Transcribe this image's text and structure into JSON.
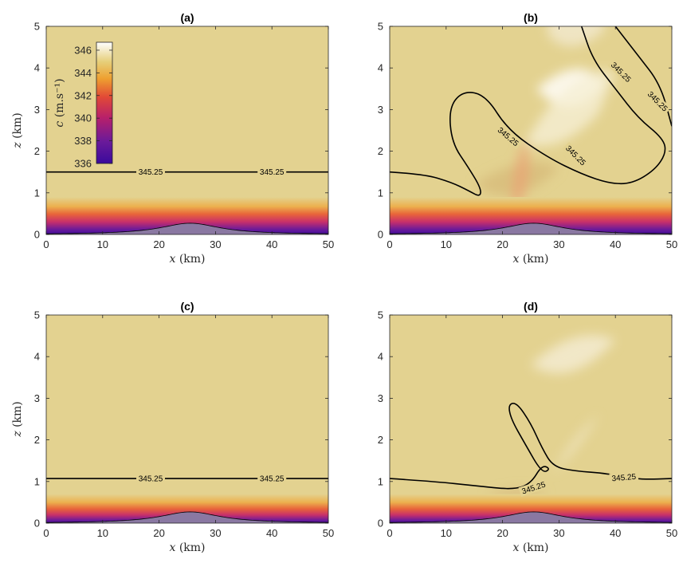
{
  "chart_data": [
    {
      "type": "heatmap",
      "title": "(a)",
      "xlabel": "x",
      "xlabel_unit": "(km)",
      "ylabel": "z",
      "ylabel_unit": "(km)",
      "xlim": [
        0,
        50
      ],
      "ylim": [
        0,
        5
      ],
      "xticks": [
        "0",
        "10",
        "20",
        "30",
        "40",
        "50"
      ],
      "yticks": [
        "0",
        "1",
        "2",
        "3",
        "4",
        "5"
      ],
      "contour_level": "345.25",
      "contour_labels": [
        {
          "x": 18.5,
          "z": 1.5,
          "text": "345.25"
        },
        {
          "x": 40,
          "z": 1.5,
          "text": "345.25"
        }
      ],
      "contour": [
        [
          0,
          1.5
        ],
        [
          50,
          1.5
        ]
      ],
      "terrain_peak_km": 0.27,
      "terrain_center_km": 25.5,
      "colorbar": {
        "label": "c",
        "label_unit": "(m.s⁻¹)",
        "ticks": [
          "336",
          "338",
          "340",
          "342",
          "344",
          "346"
        ],
        "range": [
          336,
          346.7
        ]
      }
    },
    {
      "type": "heatmap",
      "title": "(b)",
      "xlabel": "x",
      "xlabel_unit": "(km)",
      "xlim": [
        0,
        50
      ],
      "ylim": [
        0,
        5
      ],
      "xticks": [
        "0",
        "10",
        "20",
        "30",
        "40",
        "50"
      ],
      "yticks": [
        "0",
        "1",
        "2",
        "3",
        "4",
        "5"
      ],
      "contour_level": "345.25",
      "contour_labels": [
        {
          "x": 21,
          "z": 2.35,
          "text": "345.25",
          "rotate": 40
        },
        {
          "x": 33,
          "z": 1.9,
          "text": "345.25",
          "rotate": 45
        },
        {
          "x": 41,
          "z": 3.9,
          "text": "345.25",
          "rotate": 45
        },
        {
          "x": 47.5,
          "z": 3.2,
          "text": "345.25",
          "rotate": 45
        }
      ],
      "contour": [
        [
          0,
          1.5
        ],
        [
          6,
          1.45
        ],
        [
          11,
          1.25
        ],
        [
          14,
          1.05
        ],
        [
          16,
          0.9
        ],
        [
          16.2,
          1.1
        ],
        [
          14,
          1.6
        ],
        [
          11,
          2.2
        ],
        [
          10.5,
          3.05
        ],
        [
          13,
          3.45
        ],
        [
          17,
          3.35
        ],
        [
          21,
          2.5
        ],
        [
          28,
          1.85
        ],
        [
          34,
          1.45
        ],
        [
          39,
          1.22
        ],
        [
          43,
          1.22
        ],
        [
          47,
          1.55
        ],
        [
          49,
          1.95
        ],
        [
          48.5,
          2.3
        ],
        [
          44,
          2.8
        ],
        [
          40,
          3.5
        ],
        [
          36,
          4.2
        ],
        [
          34,
          5
        ]
      ],
      "contour2": [
        [
          40,
          5
        ],
        [
          44,
          4.3
        ],
        [
          48,
          3.6
        ],
        [
          50,
          2.6
        ]
      ],
      "terrain_peak_km": 0.27,
      "terrain_center_km": 25.5
    },
    {
      "type": "heatmap",
      "title": "(c)",
      "xlabel": "x",
      "xlabel_unit": "(km)",
      "ylabel": "z",
      "ylabel_unit": "(km)",
      "xlim": [
        0,
        50
      ],
      "ylim": [
        0,
        5
      ],
      "xticks": [
        "0",
        "10",
        "20",
        "30",
        "40",
        "50"
      ],
      "yticks": [
        "0",
        "1",
        "2",
        "3",
        "4",
        "5"
      ],
      "contour_level": "345.25",
      "contour_labels": [
        {
          "x": 18.5,
          "z": 1.07,
          "text": "345.25"
        },
        {
          "x": 40,
          "z": 1.07,
          "text": "345.25"
        }
      ],
      "contour": [
        [
          0,
          1.07
        ],
        [
          50,
          1.07
        ]
      ],
      "terrain_peak_km": 0.27,
      "terrain_center_km": 25.5
    },
    {
      "type": "heatmap",
      "title": "(d)",
      "xlabel": "x",
      "xlabel_unit": "(km)",
      "xlim": [
        0,
        50
      ],
      "ylim": [
        0,
        5
      ],
      "xticks": [
        "0",
        "10",
        "20",
        "30",
        "40",
        "50"
      ],
      "yticks": [
        "0",
        "1",
        "2",
        "3",
        "4",
        "5"
      ],
      "contour_level": "345.25",
      "contour_labels": [
        {
          "x": 25.5,
          "z": 0.85,
          "text": "345.25",
          "rotate": -18
        },
        {
          "x": 41.5,
          "z": 1.1,
          "text": "345.25",
          "rotate": -5
        }
      ],
      "contour": [
        [
          0,
          1.07
        ],
        [
          8,
          1.0
        ],
        [
          15,
          0.9
        ],
        [
          22,
          0.8
        ],
        [
          25,
          0.95
        ],
        [
          27,
          1.4
        ],
        [
          28.5,
          1.3
        ],
        [
          27,
          1.2
        ],
        [
          24,
          1.9
        ],
        [
          21.5,
          2.5
        ],
        [
          21,
          2.85
        ],
        [
          22.5,
          2.9
        ],
        [
          25,
          2.4
        ],
        [
          27,
          1.8
        ],
        [
          29,
          1.35
        ],
        [
          33,
          1.25
        ],
        [
          38,
          1.2
        ],
        [
          42,
          1.1
        ],
        [
          45,
          1.05
        ],
        [
          50,
          1.07
        ]
      ],
      "terrain_peak_km": 0.27,
      "terrain_center_km": 25.5
    }
  ]
}
